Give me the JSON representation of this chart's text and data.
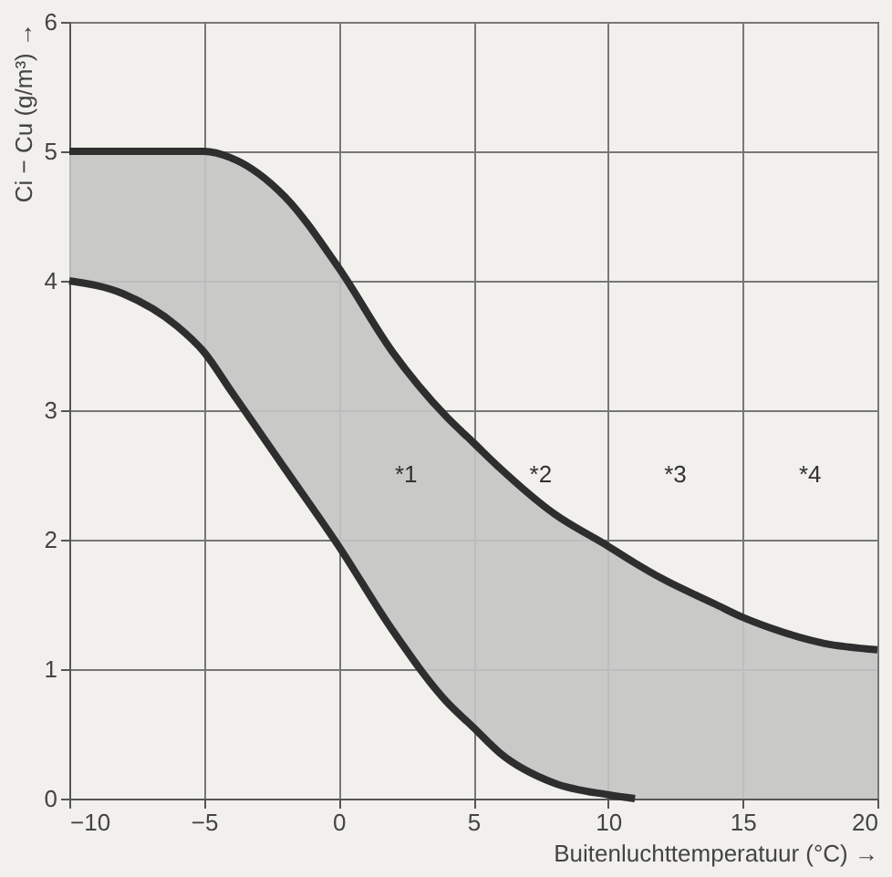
{
  "chart_data": {
    "type": "line",
    "xlabel": "Buitenluchttemperatuur (°C) →",
    "ylabel": "Ci − Cu (g/m³) →",
    "x": [
      -10,
      -8,
      -6,
      -5,
      -4,
      -2,
      0,
      2,
      4,
      5,
      6,
      8,
      10,
      11,
      12,
      14,
      15,
      16,
      18,
      20
    ],
    "series": [
      {
        "color": "#2e2e2e",
        "values": [
          5,
          5,
          5,
          5,
          4.95,
          4.65,
          4.1,
          3.45,
          2.95,
          2.75,
          2.55,
          2.2,
          1.95,
          1.82,
          1.7,
          1.5,
          1.4,
          1.32,
          1.2,
          1.15
        ],
        "lower": [
          4,
          3.9,
          3.65,
          3.45,
          3.15,
          2.55,
          1.95,
          1.3,
          0.75,
          0.55,
          0.35,
          0.12,
          0.03,
          0,
          0,
          0,
          0,
          0,
          0,
          0
        ],
        "upper": [
          5,
          5,
          5,
          5,
          4.95,
          4.65,
          4.1,
          3.45,
          2.95,
          2.75,
          2.55,
          2.2,
          1.95,
          1.82,
          1.7,
          1.5,
          1.4,
          1.32,
          1.2,
          1.15
        ]
      },
      {
        "color": "#2e2e2e",
        "values": [
          4,
          3.9,
          3.65,
          3.45,
          3.15,
          2.55,
          1.95,
          1.3,
          0.75,
          0.55,
          0.35,
          0.12,
          0.03,
          0,
          null,
          null,
          null,
          null,
          null,
          null
        ]
      }
    ],
    "annotations": [
      "*1",
      "*2",
      "*3",
      "*4"
    ],
    "xlim": [
      -10,
      20
    ],
    "ylim": [
      0,
      6
    ],
    "xticks": [
      -10,
      -5,
      0,
      5,
      10,
      15,
      20
    ],
    "yticks": [
      0,
      1,
      2,
      3,
      4,
      5,
      6
    ],
    "grid": true,
    "marker": "none",
    "line_style": "solid"
  }
}
